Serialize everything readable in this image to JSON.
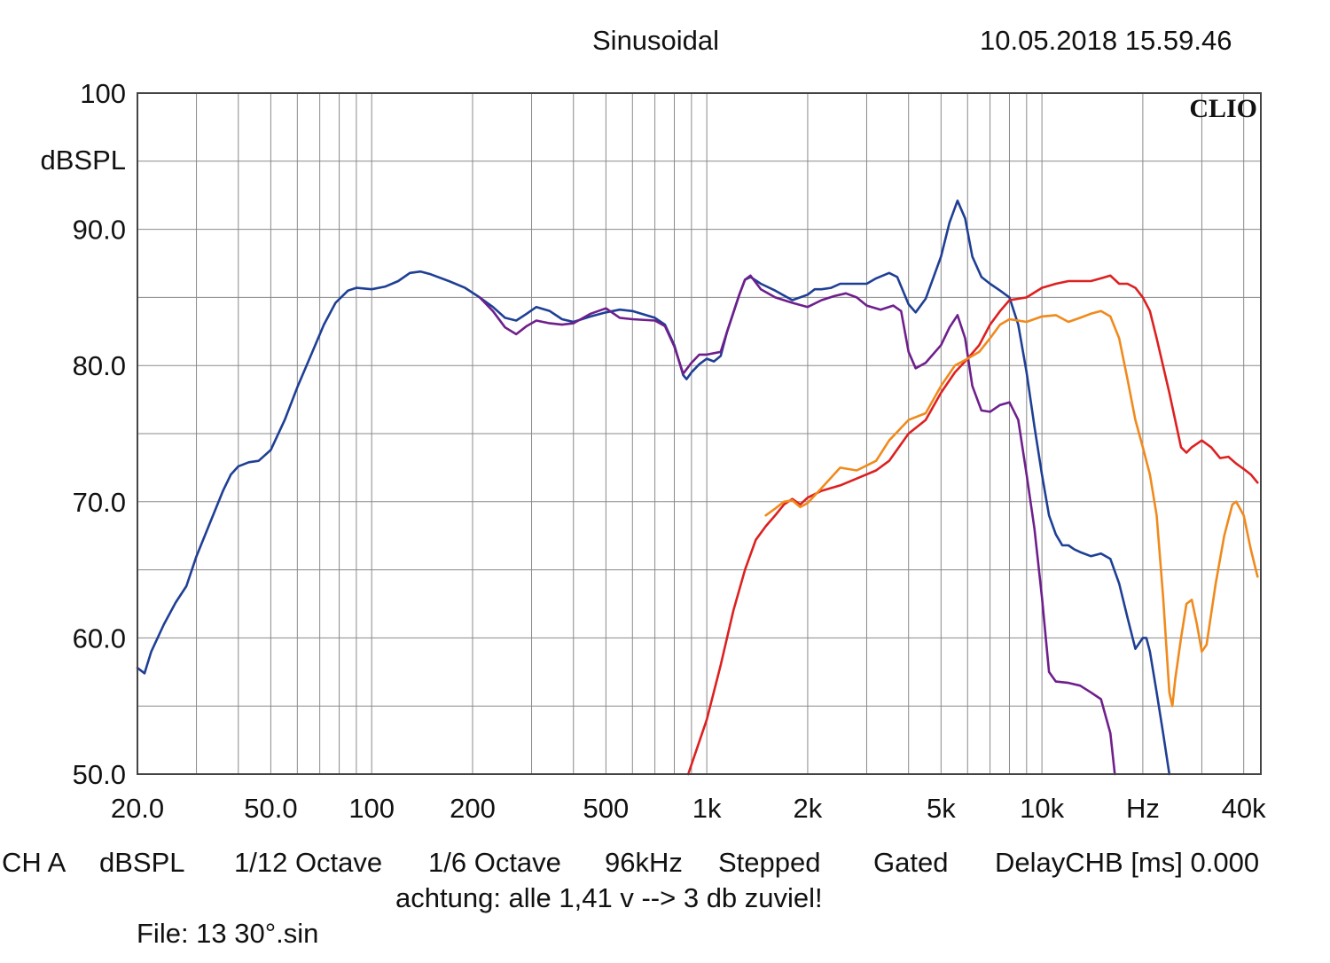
{
  "header": {
    "title": "Sinusoidal",
    "datetime": "10.05.2018 15.59.46",
    "brand": "CLIO"
  },
  "footer": {
    "settings": [
      "CH A",
      "dBSPL",
      "1/12 Octave",
      "1/6 Octave",
      "96kHz",
      "Stepped",
      "Gated",
      "DelayCHB [ms] 0.000"
    ],
    "note": "achtung: alle 1,41 v --> 3 db zuviel!",
    "file": "File: 13 30°.sin"
  },
  "colors": {
    "blue": "#1f3f95",
    "purple": "#6e1f8c",
    "red": "#dd2020",
    "orange": "#f08a1c",
    "grid": "#8a8a8a"
  },
  "chart_data": {
    "type": "line",
    "ylabel": "dBSPL",
    "xlabel": "Hz",
    "xscale": "log",
    "xlim": [
      20,
      45000
    ],
    "ylim": [
      50,
      100
    ],
    "y_ticks": [
      {
        "value": 100,
        "label": "100"
      },
      {
        "value": 90,
        "label": "90.0"
      },
      {
        "value": 80,
        "label": "80.0"
      },
      {
        "value": 70,
        "label": "70.0"
      },
      {
        "value": 60,
        "label": "60.0"
      },
      {
        "value": 50,
        "label": "50.0"
      }
    ],
    "x_ticks": [
      {
        "value": 20,
        "label": "20.0"
      },
      {
        "value": 50,
        "label": "50.0"
      },
      {
        "value": 100,
        "label": "100"
      },
      {
        "value": 200,
        "label": "200"
      },
      {
        "value": 500,
        "label": "500"
      },
      {
        "value": 1000,
        "label": "1k"
      },
      {
        "value": 2000,
        "label": "2k"
      },
      {
        "value": 5000,
        "label": "5k"
      },
      {
        "value": 10000,
        "label": "10k"
      },
      {
        "value": 20000,
        "label": "Hz"
      },
      {
        "value": 40000,
        "label": "40k"
      }
    ],
    "series": [
      {
        "name": "blue",
        "color": "#1f3f95",
        "points": [
          [
            20,
            57.8
          ],
          [
            21,
            57.4
          ],
          [
            22,
            59
          ],
          [
            24,
            61
          ],
          [
            26,
            62.6
          ],
          [
            28,
            63.8
          ],
          [
            30,
            66
          ],
          [
            33,
            68.5
          ],
          [
            36,
            70.8
          ],
          [
            38,
            72
          ],
          [
            40,
            72.6
          ],
          [
            43,
            72.9
          ],
          [
            46,
            73
          ],
          [
            50,
            73.8
          ],
          [
            55,
            76
          ],
          [
            60,
            78.4
          ],
          [
            66,
            80.8
          ],
          [
            72,
            83
          ],
          [
            78,
            84.6
          ],
          [
            85,
            85.5
          ],
          [
            90,
            85.7
          ],
          [
            100,
            85.6
          ],
          [
            110,
            85.8
          ],
          [
            120,
            86.2
          ],
          [
            130,
            86.8
          ],
          [
            140,
            86.9
          ],
          [
            150,
            86.7
          ],
          [
            170,
            86.2
          ],
          [
            190,
            85.7
          ],
          [
            210,
            85
          ],
          [
            230,
            84.3
          ],
          [
            250,
            83.5
          ],
          [
            270,
            83.3
          ],
          [
            290,
            83.8
          ],
          [
            310,
            84.3
          ],
          [
            340,
            84
          ],
          [
            370,
            83.4
          ],
          [
            400,
            83.2
          ],
          [
            450,
            83.6
          ],
          [
            500,
            83.9
          ],
          [
            550,
            84.1
          ],
          [
            600,
            84
          ],
          [
            700,
            83.5
          ],
          [
            750,
            83
          ],
          [
            800,
            81.5
          ],
          [
            850,
            79.3
          ],
          [
            870,
            79
          ],
          [
            900,
            79.5
          ],
          [
            950,
            80.1
          ],
          [
            1000,
            80.5
          ],
          [
            1050,
            80.3
          ],
          [
            1100,
            80.7
          ],
          [
            1150,
            82.5
          ],
          [
            1250,
            85.2
          ],
          [
            1300,
            86.3
          ],
          [
            1350,
            86.5
          ],
          [
            1450,
            86
          ],
          [
            1600,
            85.5
          ],
          [
            1800,
            84.8
          ],
          [
            2000,
            85.2
          ],
          [
            2100,
            85.6
          ],
          [
            2200,
            85.6
          ],
          [
            2350,
            85.7
          ],
          [
            2500,
            86
          ],
          [
            2700,
            86
          ],
          [
            3000,
            86
          ],
          [
            3200,
            86.4
          ],
          [
            3500,
            86.8
          ],
          [
            3700,
            86.5
          ],
          [
            4000,
            84.5
          ],
          [
            4200,
            83.9
          ],
          [
            4500,
            84.9
          ],
          [
            5000,
            88
          ],
          [
            5300,
            90.5
          ],
          [
            5600,
            92.1
          ],
          [
            5900,
            90.8
          ],
          [
            6200,
            88
          ],
          [
            6600,
            86.5
          ],
          [
            7000,
            86
          ],
          [
            7500,
            85.5
          ],
          [
            8000,
            85
          ],
          [
            8500,
            83
          ],
          [
            9000,
            79.5
          ],
          [
            9500,
            75.5
          ],
          [
            10000,
            72
          ],
          [
            10500,
            69
          ],
          [
            11000,
            67.6
          ],
          [
            11500,
            66.8
          ],
          [
            12000,
            66.8
          ],
          [
            12500,
            66.5
          ],
          [
            13000,
            66.3
          ],
          [
            14000,
            66
          ],
          [
            15000,
            66.2
          ],
          [
            16000,
            65.8
          ],
          [
            17000,
            64
          ],
          [
            18000,
            61.5
          ],
          [
            19000,
            59.2
          ],
          [
            20000,
            60
          ],
          [
            20500,
            60
          ],
          [
            21000,
            59
          ],
          [
            22000,
            56
          ],
          [
            23000,
            53
          ],
          [
            24000,
            50
          ]
        ]
      },
      {
        "name": "purple",
        "color": "#6e1f8c",
        "points": [
          [
            210,
            85
          ],
          [
            230,
            84
          ],
          [
            250,
            82.8
          ],
          [
            270,
            82.3
          ],
          [
            290,
            82.9
          ],
          [
            310,
            83.3
          ],
          [
            340,
            83.1
          ],
          [
            370,
            83
          ],
          [
            400,
            83.1
          ],
          [
            450,
            83.8
          ],
          [
            500,
            84.2
          ],
          [
            550,
            83.5
          ],
          [
            600,
            83.4
          ],
          [
            700,
            83.3
          ],
          [
            750,
            82.9
          ],
          [
            800,
            81.4
          ],
          [
            850,
            79.4
          ],
          [
            900,
            80.2
          ],
          [
            950,
            80.8
          ],
          [
            1000,
            80.8
          ],
          [
            1100,
            81
          ],
          [
            1150,
            82.5
          ],
          [
            1250,
            85.2
          ],
          [
            1300,
            86.3
          ],
          [
            1350,
            86.6
          ],
          [
            1450,
            85.6
          ],
          [
            1600,
            85
          ],
          [
            1800,
            84.6
          ],
          [
            2000,
            84.3
          ],
          [
            2200,
            84.8
          ],
          [
            2400,
            85.1
          ],
          [
            2600,
            85.3
          ],
          [
            2800,
            85
          ],
          [
            3000,
            84.4
          ],
          [
            3300,
            84.1
          ],
          [
            3600,
            84.4
          ],
          [
            3800,
            84
          ],
          [
            4000,
            81
          ],
          [
            4200,
            79.8
          ],
          [
            4500,
            80.2
          ],
          [
            5000,
            81.5
          ],
          [
            5300,
            82.8
          ],
          [
            5600,
            83.7
          ],
          [
            5900,
            82
          ],
          [
            6200,
            78.5
          ],
          [
            6600,
            76.7
          ],
          [
            7000,
            76.6
          ],
          [
            7500,
            77.1
          ],
          [
            8000,
            77.3
          ],
          [
            8500,
            76
          ],
          [
            9000,
            72
          ],
          [
            9500,
            68
          ],
          [
            10000,
            63
          ],
          [
            10500,
            57.5
          ],
          [
            11000,
            56.8
          ],
          [
            12000,
            56.7
          ],
          [
            13000,
            56.5
          ],
          [
            14000,
            56
          ],
          [
            15000,
            55.5
          ],
          [
            16000,
            53
          ],
          [
            16500,
            50
          ]
        ]
      },
      {
        "name": "red",
        "color": "#dd2020",
        "points": [
          [
            880,
            50
          ],
          [
            1000,
            54
          ],
          [
            1100,
            58
          ],
          [
            1200,
            62
          ],
          [
            1300,
            65
          ],
          [
            1400,
            67.2
          ],
          [
            1500,
            68.2
          ],
          [
            1600,
            69
          ],
          [
            1700,
            69.8
          ],
          [
            1800,
            70.2
          ],
          [
            1900,
            69.8
          ],
          [
            2000,
            70.3
          ],
          [
            2200,
            70.8
          ],
          [
            2500,
            71.2
          ],
          [
            2800,
            71.7
          ],
          [
            3200,
            72.3
          ],
          [
            3500,
            73
          ],
          [
            4000,
            75
          ],
          [
            4500,
            76
          ],
          [
            5000,
            78
          ],
          [
            5500,
            79.5
          ],
          [
            6000,
            80.5
          ],
          [
            6500,
            81.5
          ],
          [
            7000,
            83
          ],
          [
            7500,
            84
          ],
          [
            8000,
            84.8
          ],
          [
            9000,
            85
          ],
          [
            10000,
            85.7
          ],
          [
            11000,
            86
          ],
          [
            12000,
            86.2
          ],
          [
            13000,
            86.2
          ],
          [
            14000,
            86.2
          ],
          [
            15000,
            86.4
          ],
          [
            16000,
            86.6
          ],
          [
            17000,
            86
          ],
          [
            18000,
            86
          ],
          [
            19000,
            85.7
          ],
          [
            20000,
            85
          ],
          [
            21000,
            84
          ],
          [
            22000,
            82
          ],
          [
            24000,
            78
          ],
          [
            26000,
            74
          ],
          [
            27000,
            73.6
          ],
          [
            28000,
            74
          ],
          [
            30000,
            74.5
          ],
          [
            32000,
            74
          ],
          [
            34000,
            73.2
          ],
          [
            36000,
            73.3
          ],
          [
            38000,
            72.8
          ],
          [
            40000,
            72.4
          ],
          [
            42000,
            72
          ],
          [
            44000,
            71.4
          ]
        ]
      },
      {
        "name": "orange",
        "color": "#f08a1c",
        "points": [
          [
            1500,
            69
          ],
          [
            1600,
            69.5
          ],
          [
            1700,
            70
          ],
          [
            1800,
            70.1
          ],
          [
            1900,
            69.6
          ],
          [
            2000,
            69.9
          ],
          [
            2200,
            71
          ],
          [
            2500,
            72.5
          ],
          [
            2800,
            72.3
          ],
          [
            3200,
            73
          ],
          [
            3500,
            74.5
          ],
          [
            4000,
            76
          ],
          [
            4500,
            76.5
          ],
          [
            5000,
            78.5
          ],
          [
            5500,
            80
          ],
          [
            6000,
            80.5
          ],
          [
            6500,
            81
          ],
          [
            7000,
            82
          ],
          [
            7500,
            83
          ],
          [
            8000,
            83.4
          ],
          [
            9000,
            83.2
          ],
          [
            10000,
            83.6
          ],
          [
            11000,
            83.7
          ],
          [
            12000,
            83.2
          ],
          [
            13000,
            83.5
          ],
          [
            14000,
            83.8
          ],
          [
            15000,
            84
          ],
          [
            16000,
            83.6
          ],
          [
            17000,
            82
          ],
          [
            18000,
            79
          ],
          [
            19000,
            76
          ],
          [
            20000,
            74
          ],
          [
            21000,
            72
          ],
          [
            22000,
            69
          ],
          [
            23000,
            63
          ],
          [
            24000,
            56
          ],
          [
            24500,
            55
          ],
          [
            25000,
            57
          ],
          [
            26000,
            60
          ],
          [
            27000,
            62.5
          ],
          [
            28000,
            62.8
          ],
          [
            29000,
            61
          ],
          [
            30000,
            59
          ],
          [
            31000,
            59.5
          ],
          [
            33000,
            64
          ],
          [
            35000,
            67.5
          ],
          [
            37000,
            69.8
          ],
          [
            38000,
            70
          ],
          [
            40000,
            69
          ],
          [
            42000,
            66.5
          ],
          [
            44000,
            64.5
          ]
        ]
      }
    ]
  }
}
